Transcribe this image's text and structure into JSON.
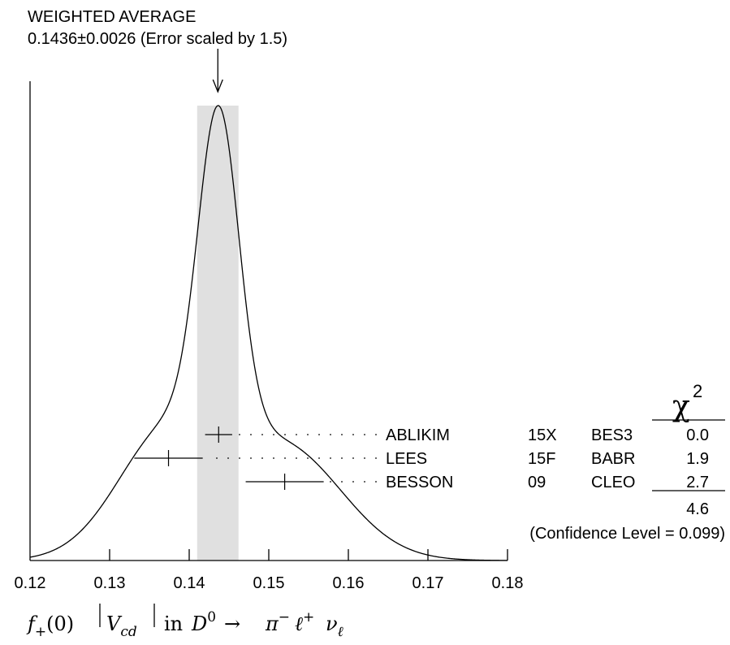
{
  "chart_data": {
    "type": "ideogram",
    "title_line1": "WEIGHTED AVERAGE",
    "title_line2": "0.1436±0.0026 (Error scaled by 1.5)",
    "average": 0.1436,
    "error": 0.0026,
    "xlim": [
      0.12,
      0.18
    ],
    "ticks": [
      "0.12",
      "0.13",
      "0.14",
      "0.15",
      "0.16",
      "0.17",
      "0.18"
    ],
    "xlabel": {
      "f": "f",
      "f_sub": "+",
      "arg": "(0)",
      "v": "V",
      "v_sub": "cd",
      "in": "in",
      "d": "D",
      "d_sup": "0",
      "arrow": "→",
      "pi": "π",
      "pi_sup": "−",
      "ell": "ℓ",
      "ell_sup": "+",
      "nu": "ν",
      "nu_sub": "ℓ"
    },
    "chi2_header": "χ",
    "chi2_sup": "2",
    "measurements": [
      {
        "author": "ABLIKIM",
        "year": "15X",
        "experiment": "BES3",
        "value": 0.1437,
        "error": 0.0017,
        "chi2": "0.0"
      },
      {
        "author": "LEES",
        "year": "15F",
        "experiment": "BABR",
        "value": 0.1374,
        "error": 0.0043,
        "chi2": "1.9"
      },
      {
        "author": "BESSON",
        "year": "09",
        "experiment": "CLEO",
        "value": 0.152,
        "error": 0.0049,
        "chi2": "2.7"
      }
    ],
    "chi2_total": "4.6",
    "confidence_level": "(Confidence Level = 0.099)",
    "ideogram_scale": 1.5
  }
}
